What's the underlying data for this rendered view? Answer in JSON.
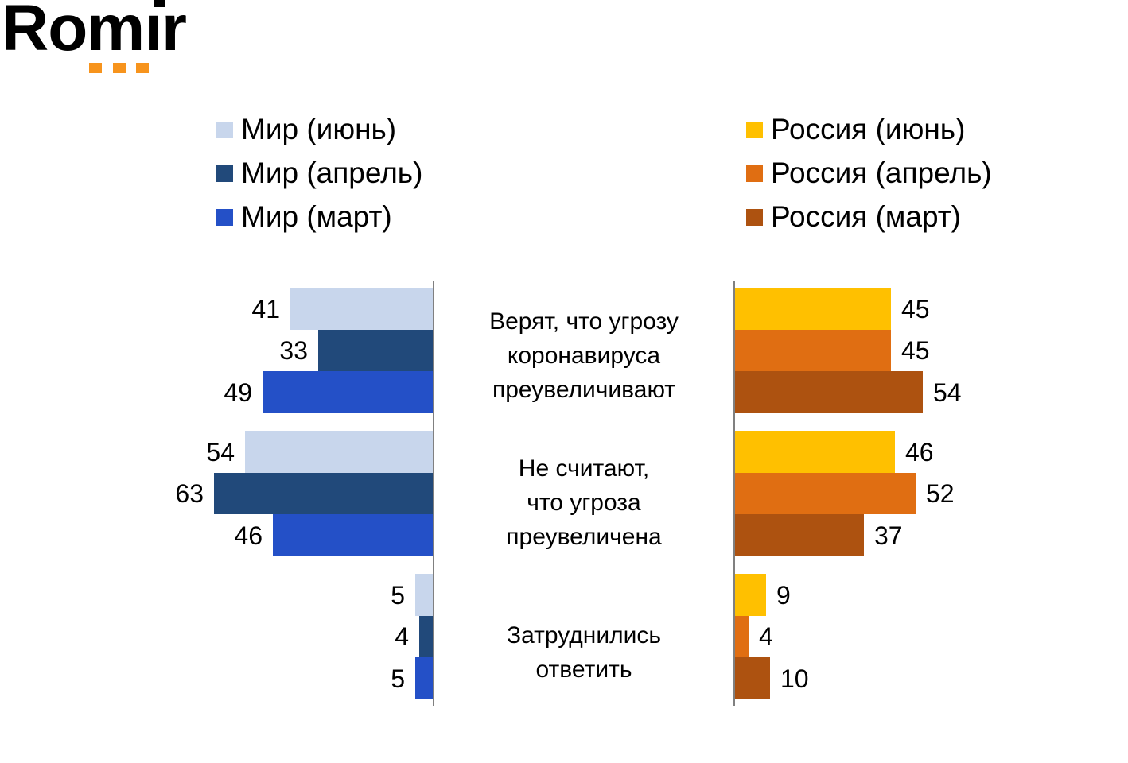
{
  "logo": {
    "text": "Romir",
    "display_text_dotless": "Romır",
    "text_color": "#000000",
    "accent_color": "#F7941D"
  },
  "legend_left": {
    "items": [
      {
        "label": "Мир (июнь)",
        "color": "#C8D6EC"
      },
      {
        "label": "Мир (апрель)",
        "color": "#21497A"
      },
      {
        "label": "Мир (март)",
        "color": "#2450C7"
      }
    ]
  },
  "legend_right": {
    "items": [
      {
        "label": "Россия (июнь)",
        "color": "#FFC000"
      },
      {
        "label": "Россия (апрель)",
        "color": "#E06E12"
      },
      {
        "label": "Россия (март)",
        "color": "#AD5210"
      }
    ]
  },
  "chart_data": {
    "type": "bar",
    "orientation": "horizontal, mirrored butterfly chart (left bars grow leftward, right bars grow rightward)",
    "title": "",
    "categories": [
      "Верят, что угрозу коронавируса преувеличивают",
      "Не считают, что угроза преувеличена",
      "Затруднились ответить"
    ],
    "category_lines": [
      [
        "Верят, что угрозу",
        "коронавируса",
        "преувеличивают"
      ],
      [
        "Не считают,",
        "что угроза",
        "преувеличена"
      ],
      [
        "Затруднились",
        "ответить"
      ]
    ],
    "series": [
      {
        "name": "Мир (июнь)",
        "side": "left",
        "color": "#C8D6EC",
        "values": [
          41,
          54,
          5
        ]
      },
      {
        "name": "Мир (апрель)",
        "side": "left",
        "color": "#21497A",
        "values": [
          33,
          63,
          4
        ]
      },
      {
        "name": "Мир (март)",
        "side": "left",
        "color": "#2450C7",
        "values": [
          49,
          46,
          5
        ]
      },
      {
        "name": "Россия (июнь)",
        "side": "right",
        "color": "#FFC000",
        "values": [
          45,
          46,
          9
        ]
      },
      {
        "name": "Россия (апрель)",
        "side": "right",
        "color": "#E06E12",
        "values": [
          45,
          52,
          4
        ]
      },
      {
        "name": "Россия (март)",
        "side": "right",
        "color": "#AD5210",
        "values": [
          54,
          37,
          10
        ]
      }
    ],
    "value_labels_shown": true,
    "axis_color": "#808080",
    "value_range": [
      0,
      63
    ],
    "grid": false,
    "legend_position": "top, split: world series top-left, russia series top-right"
  }
}
